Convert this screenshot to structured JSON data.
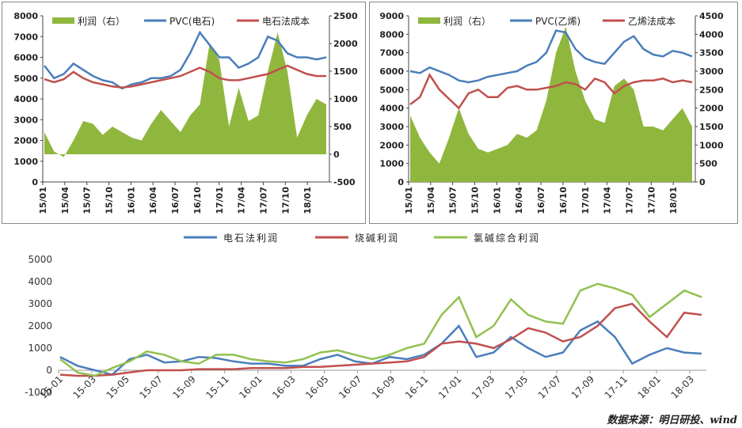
{
  "source": "数据来源：明日研投、wind",
  "chart_data": [
    {
      "type": "line",
      "title": "",
      "legend": [
        "利润（右）",
        "PVC(电石)",
        "电石法成本"
      ],
      "ylim": [
        0,
        8000
      ],
      "y_ticks": [
        0,
        1000,
        2000,
        3000,
        4000,
        5000,
        6000,
        7000,
        8000
      ],
      "y2lim": [
        -500,
        2500
      ],
      "y2_ticks": [
        -500,
        0,
        500,
        1000,
        1500,
        2000,
        2500
      ],
      "x_labels": [
        "15/01",
        "15/04",
        "15/07",
        "15/10",
        "16/01",
        "16/04",
        "16/07",
        "16/10",
        "17/01",
        "17/04",
        "17/07",
        "17/10",
        "18/01"
      ],
      "series": [
        {
          "name": "利润（右）",
          "axis": "right",
          "kind": "area",
          "color": "#8fb73e",
          "values": [
            400,
            50,
            -50,
            250,
            600,
            550,
            350,
            500,
            400,
            300,
            250,
            550,
            800,
            600,
            400,
            700,
            900,
            2000,
            1700,
            500,
            1200,
            600,
            700,
            1500,
            2200,
            1500,
            300,
            700,
            1000,
            900
          ]
        },
        {
          "name": "PVC(电石)",
          "axis": "left",
          "kind": "line",
          "color": "#4a7ebb",
          "values": [
            5600,
            5000,
            5200,
            5700,
            5400,
            5100,
            4900,
            4800,
            4500,
            4700,
            4800,
            5000,
            5000,
            5100,
            5400,
            6200,
            7200,
            6600,
            6000,
            6000,
            5500,
            5700,
            6000,
            7000,
            6800,
            6200,
            6000,
            6000,
            5900,
            6000
          ]
        },
        {
          "name": "电石法成本",
          "axis": "left",
          "kind": "line",
          "color": "#c0504d",
          "values": [
            4950,
            4800,
            4950,
            5300,
            5000,
            4800,
            4700,
            4600,
            4550,
            4600,
            4700,
            4800,
            4900,
            5000,
            5100,
            5300,
            5500,
            5300,
            5000,
            4900,
            4900,
            5000,
            5100,
            5200,
            5400,
            5600,
            5400,
            5200,
            5100,
            5100
          ]
        }
      ]
    },
    {
      "type": "line",
      "title": "",
      "legend": [
        "利润（右）",
        "PVC(乙烯)",
        "乙烯法成本"
      ],
      "ylim": [
        0,
        9000
      ],
      "y_ticks": [
        0,
        1000,
        2000,
        3000,
        4000,
        5000,
        6000,
        7000,
        8000,
        9000
      ],
      "y2lim": [
        0,
        4500
      ],
      "y2_ticks": [
        0,
        500,
        1000,
        1500,
        2000,
        2500,
        3000,
        3500,
        4000,
        4500
      ],
      "x_labels": [
        "15/01",
        "15/04",
        "15/07",
        "15/10",
        "16/01",
        "16/04",
        "16/07",
        "16/10",
        "17/01",
        "17/04",
        "17/07",
        "17/10",
        "18/01"
      ],
      "series": [
        {
          "name": "利润（右）",
          "axis": "right",
          "kind": "area",
          "color": "#8fb73e",
          "values": [
            1800,
            1200,
            800,
            500,
            1200,
            2000,
            1300,
            900,
            800,
            900,
            1000,
            1300,
            1200,
            1400,
            2200,
            3500,
            4200,
            3000,
            2200,
            1700,
            1600,
            2600,
            2800,
            2500,
            1500,
            1500,
            1400,
            1700,
            2000,
            1500
          ]
        },
        {
          "name": "PVC(乙烯)",
          "axis": "left",
          "kind": "line",
          "color": "#4a7ebb",
          "values": [
            6000,
            5900,
            6200,
            6000,
            5800,
            5500,
            5400,
            5500,
            5700,
            5800,
            5900,
            6000,
            6300,
            6500,
            7000,
            8200,
            8100,
            7200,
            6700,
            6500,
            6400,
            7000,
            7600,
            7900,
            7200,
            6900,
            6800,
            7100,
            7000,
            6800
          ]
        },
        {
          "name": "乙烯法成本",
          "axis": "left",
          "kind": "line",
          "color": "#c0504d",
          "values": [
            4200,
            4600,
            5800,
            5000,
            4500,
            4000,
            4800,
            5000,
            4600,
            4600,
            5100,
            5200,
            5000,
            5000,
            5100,
            5200,
            5400,
            5300,
            5000,
            5600,
            5400,
            4800,
            5200,
            5400,
            5500,
            5500,
            5600,
            5400,
            5500,
            5400
          ]
        }
      ]
    },
    {
      "type": "line",
      "title": "",
      "legend": [
        "电石法利润",
        "烧碱利润",
        "氯碱综合利润"
      ],
      "ylim": [
        -1000,
        5000
      ],
      "y_ticks": [
        -1000,
        0,
        1000,
        2000,
        3000,
        4000,
        5000
      ],
      "x_labels": [
        "15-01",
        "15-03",
        "15-05",
        "15-07",
        "15-09",
        "15-11",
        "16-01",
        "16-03",
        "16-05",
        "16-07",
        "16-09",
        "16-11",
        "17-01",
        "17-03",
        "17-05",
        "17-07",
        "17-09",
        "17-11",
        "18-01",
        "18-03"
      ],
      "series": [
        {
          "name": "电石法利润",
          "color": "#4a7ebb",
          "values": [
            600,
            200,
            0,
            -200,
            500,
            700,
            350,
            400,
            600,
            550,
            400,
            300,
            300,
            200,
            200,
            500,
            700,
            400,
            300,
            600,
            500,
            700,
            1200,
            2000,
            600,
            800,
            1500,
            1000,
            600,
            800,
            1800,
            2200,
            1500,
            300,
            700,
            1000,
            800,
            750
          ]
        },
        {
          "name": "烧碱利润",
          "color": "#c0504d",
          "values": [
            -200,
            -250,
            -250,
            -200,
            -100,
            0,
            0,
            0,
            50,
            50,
            50,
            100,
            100,
            100,
            150,
            150,
            200,
            250,
            300,
            350,
            400,
            600,
            1200,
            1300,
            1200,
            1000,
            1400,
            1900,
            1700,
            1300,
            1500,
            2000,
            2800,
            3000,
            2200,
            1500,
            2600,
            2500
          ]
        },
        {
          "name": "氯碱综合利润",
          "color": "#92c050",
          "values": [
            500,
            -100,
            -250,
            100,
            400,
            850,
            700,
            400,
            300,
            700,
            700,
            500,
            400,
            350,
            500,
            800,
            900,
            700,
            500,
            700,
            1000,
            1200,
            2500,
            3300,
            1500,
            2000,
            3200,
            2500,
            2200,
            2100,
            3600,
            3900,
            3700,
            3400,
            2400,
            3000,
            3600,
            3300
          ]
        }
      ]
    }
  ]
}
